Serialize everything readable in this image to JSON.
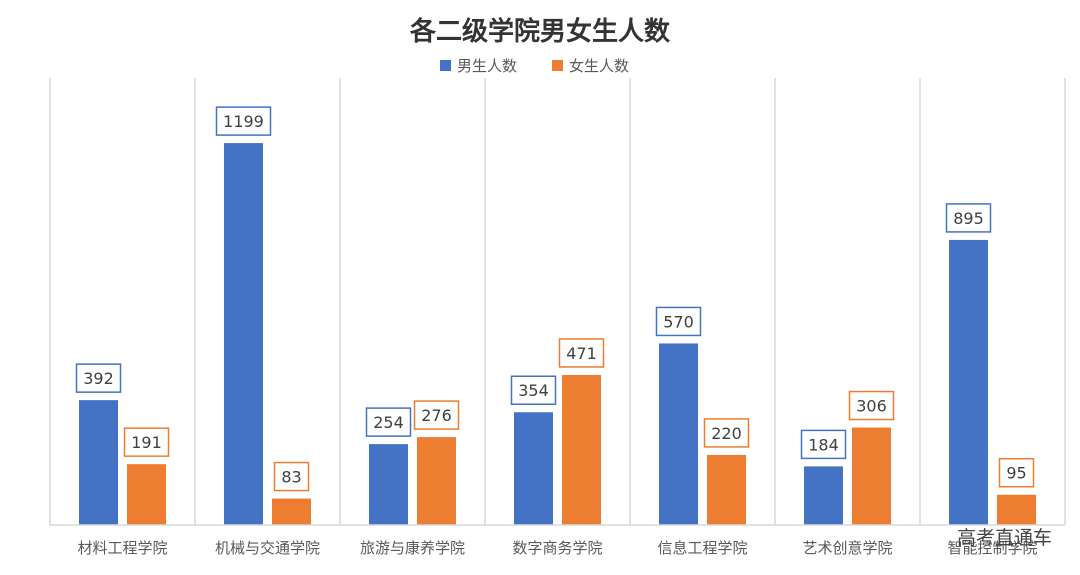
{
  "chart_data": {
    "type": "bar",
    "title": "各二级学院男女生人数",
    "categories": [
      "材料工程学院",
      "机械与交通学院",
      "旅游与康养学院",
      "数字商务学院",
      "信息工程学院",
      "艺术创意学院",
      "智能控制学院"
    ],
    "series": [
      {
        "name": "男生人数",
        "color": "#4472C4",
        "values": [
          392,
          1199,
          254,
          354,
          570,
          184,
          895
        ]
      },
      {
        "name": "女生人数",
        "color": "#ED7D31",
        "values": [
          191,
          83,
          276,
          471,
          220,
          306,
          95
        ]
      }
    ],
    "ylim": [
      0,
      1350
    ],
    "grid": "vertical category separators",
    "legend": "top-center",
    "data_labels": "boxed, series-colored border"
  },
  "watermark": "高考直通车"
}
